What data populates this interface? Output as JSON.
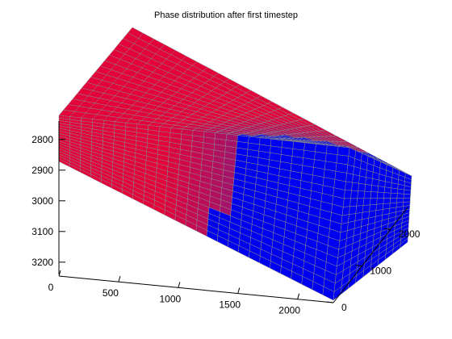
{
  "chart_data": {
    "type": "3d-grid",
    "title": "Phase distribution after first timestep",
    "colors": {
      "phase_high": "#e3023a",
      "phase_mid": "#a0146e",
      "phase_low": "#0000f0",
      "grid_line": "#8a8a8a",
      "axis": "#000000",
      "background": "#ffffff"
    },
    "axes": {
      "z": {
        "ticks": [
          "2800",
          "2900",
          "3000",
          "3100",
          "3200"
        ],
        "reversed": true,
        "range": [
          2740,
          3240
        ]
      },
      "x": {
        "ticks": [
          "0",
          "500",
          "1000",
          "1500",
          "2000"
        ],
        "range": [
          0,
          2300
        ]
      },
      "y": {
        "ticks": [
          "0",
          "1000",
          "2000"
        ],
        "range": [
          0,
          2600
        ]
      }
    },
    "phase_front": {
      "description": "red phase on left/top transitioning to blue on right",
      "x_front": 1800
    },
    "grid": "on"
  }
}
